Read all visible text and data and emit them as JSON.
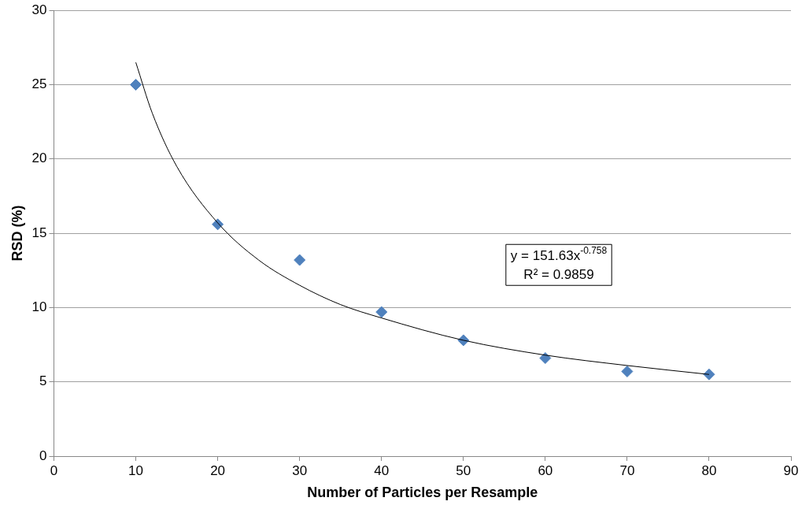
{
  "chart_data": {
    "type": "scatter",
    "xlabel": "Number of Particles per Resample",
    "ylabel": "RSD (%)",
    "xlim": [
      0,
      90
    ],
    "xticks": [
      0,
      10,
      20,
      30,
      40,
      50,
      60,
      70,
      80,
      90
    ],
    "ylim": [
      0,
      30
    ],
    "yticks": [
      0,
      5,
      10,
      15,
      20,
      25,
      30
    ],
    "grid": "y",
    "legend": false,
    "marker": "diamond",
    "series": [
      {
        "type": "scatter",
        "color": "#4f81bd",
        "x": [
          10,
          20,
          30,
          40,
          50,
          60,
          70,
          80
        ],
        "values": [
          25.0,
          15.6,
          13.2,
          9.7,
          7.8,
          6.6,
          5.7,
          5.5
        ]
      },
      {
        "type": "line",
        "color": "#000000",
        "marker": "none",
        "x": [
          10,
          12,
          15,
          20,
          25,
          30,
          35,
          40,
          50,
          60,
          70,
          80
        ],
        "values": [
          26.5,
          23.1,
          19.5,
          15.7,
          13.2,
          11.5,
          10.2,
          9.3,
          7.8,
          6.8,
          6.1,
          5.5
        ]
      }
    ],
    "annotations": [
      "y = 151.63x$^{-0.758}$",
      "R² = 0.9859"
    ]
  }
}
